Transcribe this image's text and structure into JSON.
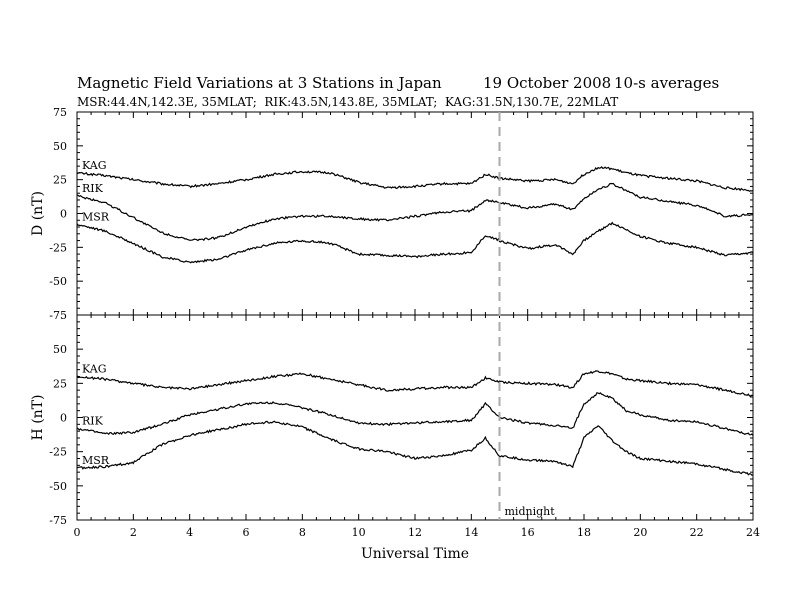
{
  "header": {
    "title": "Magnetic Field Variations at 3 Stations in Japan",
    "date": "19 October 2008",
    "averaging": "10-s averages",
    "subtitle": "MSR:44.4N,142.3E, 35MLAT;  RIK:43.5N,143.8E, 35MLAT;  KAG:31.5N,130.7E, 22MLAT"
  },
  "annotation": {
    "text": "midnight",
    "x": 15
  },
  "chart_data": [
    {
      "type": "line",
      "panel": "top",
      "ylabel": "D (nT)",
      "xlabel": "",
      "xlim": [
        0,
        24
      ],
      "ylim": [
        -75,
        75
      ],
      "yticks": [
        -75,
        -50,
        -25,
        0,
        25,
        50,
        75
      ],
      "xticks": [
        0,
        2,
        4,
        6,
        8,
        10,
        12,
        14,
        16,
        18,
        20,
        22,
        24
      ],
      "x": [
        0,
        1,
        2,
        3,
        4,
        5,
        6,
        7,
        8,
        9,
        10,
        11,
        12,
        13,
        14,
        14.5,
        15,
        16,
        17,
        17.6,
        18,
        18.5,
        19,
        19.5,
        20,
        21,
        22,
        23,
        24
      ],
      "series": [
        {
          "name": "KAG",
          "values": [
            30,
            28,
            25,
            22,
            20,
            22,
            25,
            29,
            31,
            30,
            23,
            19,
            20,
            22,
            22,
            29,
            26,
            24,
            25,
            22,
            29,
            34,
            33,
            30,
            28,
            26,
            24,
            19,
            17
          ]
        },
        {
          "name": "RIK",
          "values": [
            13,
            8,
            -3,
            -14,
            -20,
            -18,
            -10,
            -4,
            -2,
            -2,
            -4,
            -5,
            -2,
            1,
            2,
            10,
            8,
            4,
            7,
            3,
            11,
            18,
            22,
            17,
            12,
            9,
            6,
            -2,
            -1
          ]
        },
        {
          "name": "MSR",
          "values": [
            -8,
            -13,
            -22,
            -32,
            -36,
            -34,
            -27,
            -22,
            -20,
            -22,
            -30,
            -31,
            -32,
            -30,
            -29,
            -16,
            -20,
            -26,
            -23,
            -30,
            -20,
            -13,
            -7,
            -12,
            -17,
            -22,
            -25,
            -31,
            -29
          ]
        }
      ]
    },
    {
      "type": "line",
      "panel": "bottom",
      "ylabel": "H (nT)",
      "xlabel": "Universal Time",
      "xlim": [
        0,
        24
      ],
      "ylim": [
        -75,
        75
      ],
      "yticks": [
        -75,
        -50,
        -25,
        0,
        25,
        50,
        75
      ],
      "xticks": [
        0,
        2,
        4,
        6,
        8,
        10,
        12,
        14,
        16,
        18,
        20,
        22,
        24
      ],
      "x": [
        0,
        1,
        2,
        3,
        4,
        5,
        6,
        7,
        8,
        9,
        10,
        11,
        12,
        13,
        14,
        14.5,
        15,
        16,
        17,
        17.6,
        18,
        18.5,
        19,
        19.5,
        20,
        21,
        22,
        23,
        24
      ],
      "series": [
        {
          "name": "KAG",
          "values": [
            30,
            28,
            25,
            22,
            21,
            24,
            27,
            30,
            32,
            28,
            24,
            20,
            21,
            22,
            22,
            29,
            26,
            25,
            24,
            22,
            32,
            34,
            32,
            28,
            27,
            25,
            24,
            20,
            16
          ]
        },
        {
          "name": "RIK",
          "values": [
            -8,
            -12,
            -11,
            -5,
            2,
            6,
            10,
            11,
            7,
            2,
            -4,
            -5,
            -4,
            -3,
            -2,
            10,
            0,
            -4,
            -6,
            -8,
            10,
            18,
            14,
            5,
            2,
            -2,
            -3,
            -8,
            -13
          ]
        },
        {
          "name": "MSR",
          "values": [
            -37,
            -36,
            -33,
            -20,
            -13,
            -9,
            -5,
            -3,
            -7,
            -16,
            -23,
            -25,
            -30,
            -28,
            -24,
            -15,
            -28,
            -31,
            -32,
            -36,
            -15,
            -6,
            -17,
            -25,
            -30,
            -32,
            -34,
            -38,
            -42
          ]
        }
      ]
    }
  ]
}
